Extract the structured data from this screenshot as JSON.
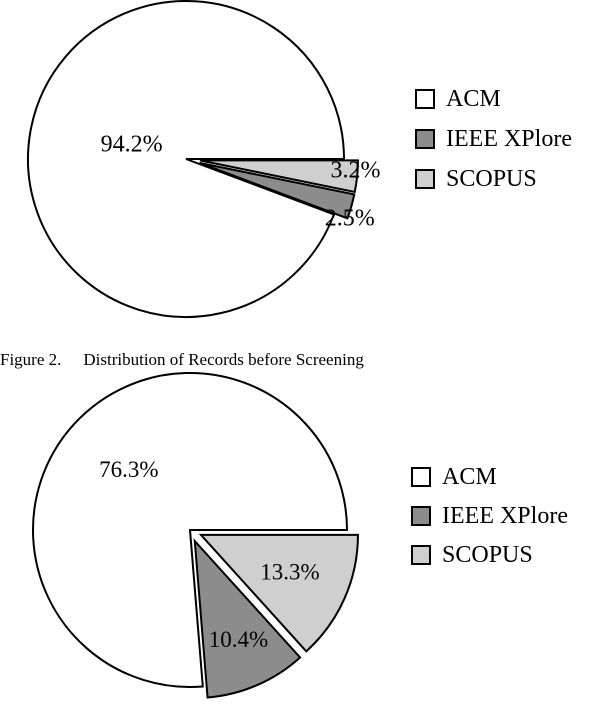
{
  "legend_labels": [
    "ACM",
    "IEEE XPlore",
    "SCOPUS"
  ],
  "colors": {
    "ACM": "#ffffff",
    "IEEE XPlore": "#8c8c8c",
    "SCOPUS": "#cfcfcf"
  },
  "caption": {
    "label": "Figure 2.",
    "text": "Distribution of Records before Screening"
  },
  "chart_data": [
    {
      "type": "pie",
      "title": "",
      "categories": [
        "ACM",
        "IEEE XPlore",
        "SCOPUS"
      ],
      "values": [
        94.2,
        2.5,
        3.2
      ],
      "data_labels": [
        "94.2%",
        "2.5%",
        "3.2%"
      ],
      "legend": "right",
      "exploded": [
        "IEEE XPlore",
        "SCOPUS"
      ]
    },
    {
      "type": "pie",
      "title": "",
      "categories": [
        "ACM",
        "IEEE XPlore",
        "SCOPUS"
      ],
      "values": [
        76.3,
        10.4,
        13.3
      ],
      "data_labels": [
        "76.3%",
        "10.4%",
        "13.3%"
      ],
      "legend": "right",
      "exploded": [
        "IEEE XPlore",
        "SCOPUS"
      ]
    }
  ]
}
